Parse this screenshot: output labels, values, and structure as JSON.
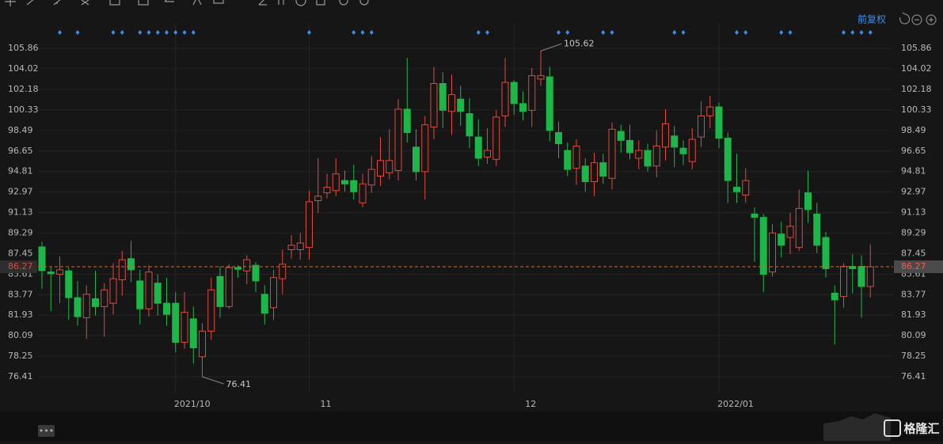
{
  "toolbar": {
    "adjust": "前复权"
  },
  "watermark": "格隆汇",
  "chart_data": {
    "type": "candlestick",
    "up_color": "#e0483c",
    "down_color": "#1db648",
    "grid": true,
    "ylim": [
      74.92,
      108.06
    ],
    "yticks": [
      76.41,
      78.25,
      80.09,
      81.93,
      83.77,
      85.61,
      87.45,
      89.29,
      91.13,
      92.97,
      94.81,
      96.65,
      98.49,
      100.33,
      102.18,
      104.02,
      105.86
    ],
    "categories": [
      null,
      null,
      null,
      null,
      null,
      null,
      null,
      null,
      null,
      null,
      null,
      null,
      null,
      null,
      null,
      "2021/10",
      null,
      null,
      null,
      null,
      null,
      null,
      null,
      null,
      null,
      null,
      null,
      null,
      null,
      null,
      "11",
      null,
      null,
      null,
      null,
      null,
      null,
      null,
      null,
      null,
      null,
      null,
      null,
      null,
      null,
      null,
      null,
      null,
      null,
      null,
      null,
      null,
      null,
      "12",
      null,
      null,
      null,
      null,
      null,
      null,
      null,
      null,
      null,
      null,
      null,
      null,
      null,
      null,
      null,
      null,
      null,
      null,
      null,
      null,
      null,
      null,
      "2022/01",
      null,
      null,
      null,
      null,
      null,
      null,
      null,
      null,
      null,
      null,
      null,
      null,
      null,
      null,
      null,
      null,
      null
    ],
    "open": [
      88.05,
      85.8,
      85.6,
      85.9,
      83.5,
      81.7,
      83.4,
      82.7,
      83.0,
      85.1,
      87.0,
      85.0,
      82.5,
      84.8,
      83.0,
      83.0,
      79.5,
      81.6,
      78.2,
      80.5,
      85.4,
      82.7,
      86.2,
      85.9,
      86.4,
      83.8,
      82.6,
      85.2,
      87.8,
      87.8,
      88.0,
      92.2,
      92.9,
      93.1,
      94.0,
      94.0,
      92.0,
      93.6,
      94.4,
      94.7,
      94.9,
      100.4,
      97.0,
      94.8,
      98.8,
      102.7,
      100.2,
      101.3,
      100.0,
      97.9,
      96.1,
      95.9,
      99.8,
      102.8,
      100.9,
      100.3,
      103.1,
      103.3,
      98.3,
      96.7,
      95.1,
      95.3,
      93.9,
      95.6,
      94.2,
      98.4,
      97.6,
      96.0,
      96.7,
      95.3,
      97.0,
      98.0,
      96.9,
      95.7,
      97.9,
      99.8,
      100.6,
      97.8,
      93.4,
      92.7,
      91.0,
      90.7,
      85.8,
      89.2,
      88.9,
      88.0,
      92.9,
      91.0,
      88.9,
      83.9,
      83.6,
      86.3,
      86.3,
      84.5
    ],
    "close": [
      85.92,
      85.65,
      86.0,
      83.5,
      81.8,
      83.8,
      82.7,
      84.2,
      85.2,
      86.9,
      86.0,
      82.5,
      85.8,
      83.0,
      82.0,
      79.5,
      82.2,
      79.0,
      80.5,
      84.2,
      82.7,
      86.2,
      86.05,
      86.9,
      85.0,
      82.1,
      85.3,
      86.5,
      88.2,
      88.4,
      92.1,
      92.6,
      93.4,
      94.6,
      93.7,
      93.0,
      93.7,
      95.0,
      95.8,
      95.8,
      100.4,
      98.3,
      94.8,
      99.0,
      102.7,
      100.3,
      101.7,
      100.2,
      98.0,
      96.0,
      96.7,
      99.7,
      102.8,
      100.9,
      100.2,
      103.4,
      103.4,
      98.5,
      97.3,
      95.0,
      97.1,
      93.9,
      95.6,
      94.4,
      98.6,
      97.6,
      96.5,
      96.7,
      95.3,
      97.1,
      99.1,
      97.0,
      96.4,
      97.7,
      99.8,
      100.6,
      97.8,
      94.0,
      93.0,
      94.0,
      90.7,
      85.6,
      89.3,
      88.2,
      89.9,
      91.5,
      91.4,
      88.2,
      86.1,
      83.3,
      86.3,
      86.1,
      84.5,
      86.27
    ],
    "low": [
      84.3,
      82.3,
      83.0,
      81.5,
      81.0,
      79.8,
      81.9,
      80.0,
      82.0,
      83.7,
      84.9,
      81.1,
      81.8,
      81.9,
      81.0,
      78.6,
      78.9,
      77.6,
      76.41,
      79.7,
      81.7,
      82.5,
      85.3,
      84.7,
      84.0,
      81.1,
      81.5,
      83.8,
      87.0,
      86.9,
      86.9,
      91.1,
      92.4,
      92.6,
      93.0,
      92.3,
      91.6,
      92.9,
      93.5,
      94.1,
      94.0,
      97.4,
      94.0,
      92.3,
      97.7,
      98.7,
      98.1,
      98.9,
      96.9,
      95.3,
      95.5,
      95.3,
      98.8,
      99.9,
      99.4,
      98.8,
      102.5,
      97.5,
      96.0,
      94.4,
      93.6,
      93.0,
      92.6,
      93.7,
      93.2,
      96.5,
      95.9,
      95.0,
      94.8,
      94.3,
      95.8,
      95.2,
      95.4,
      95.0,
      97.0,
      98.7,
      96.9,
      92.0,
      92.0,
      92.0,
      86.7,
      84.0,
      85.4,
      87.1,
      87.4,
      87.7,
      90.2,
      87.5,
      85.3,
      79.3,
      82.6,
      83.9,
      81.7,
      83.5
    ],
    "high": [
      88.5,
      86.2,
      87.2,
      86.2,
      85.0,
      84.6,
      85.9,
      84.8,
      86.6,
      87.7,
      88.6,
      86.0,
      86.4,
      85.6,
      85.3,
      84.0,
      84.0,
      82.7,
      81.2,
      85.3,
      86.3,
      86.5,
      86.4,
      87.3,
      86.7,
      84.6,
      86.0,
      87.8,
      89.1,
      89.3,
      93.1,
      96.0,
      94.6,
      96.0,
      94.9,
      95.4,
      94.6,
      96.2,
      97.9,
      98.6,
      101.3,
      105.0,
      98.6,
      99.8,
      104.2,
      103.7,
      103.5,
      102.5,
      101.4,
      99.5,
      98.7,
      100.3,
      105.0,
      103.0,
      102.0,
      104.1,
      105.62,
      104.2,
      99.3,
      97.4,
      97.7,
      96.0,
      96.5,
      96.4,
      99.2,
      99.0,
      99.0,
      97.6,
      97.3,
      98.5,
      100.4,
      98.9,
      97.6,
      98.7,
      101.1,
      101.6,
      101.0,
      98.3,
      96.4,
      95.1,
      91.6,
      91.0,
      90.1,
      90.3,
      91.1,
      93.2,
      94.9,
      92.0,
      89.4,
      84.6,
      86.6,
      87.4,
      87.3,
      88.3
    ],
    "event_markers": [
      2,
      4,
      8,
      9,
      11,
      12,
      13,
      14,
      15,
      16,
      17,
      30,
      35,
      36,
      37,
      49,
      50,
      58,
      59,
      63,
      64,
      71,
      72,
      78,
      79,
      83,
      84,
      90,
      91,
      92,
      93
    ]
  }
}
